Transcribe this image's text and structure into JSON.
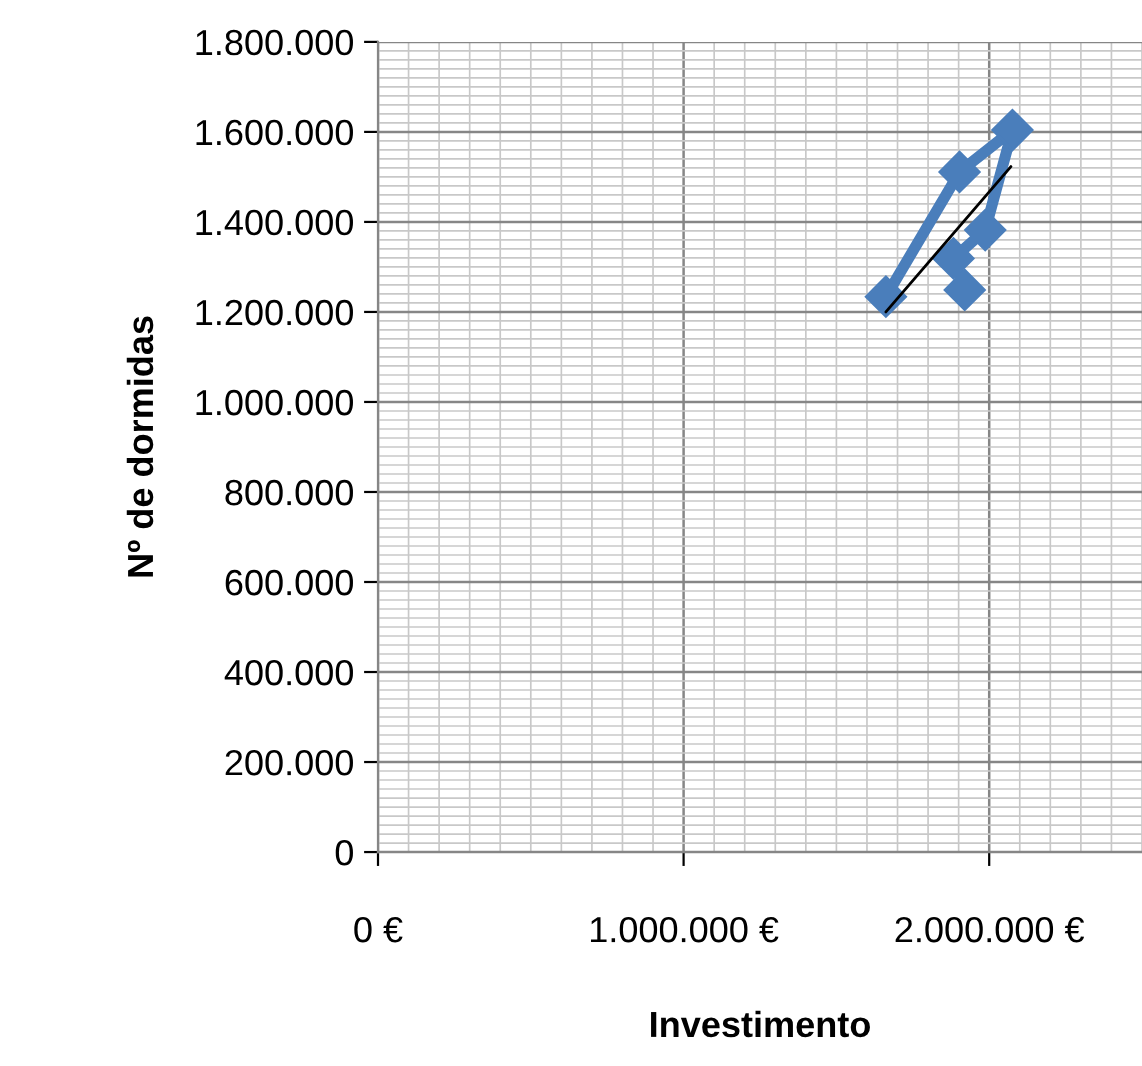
{
  "chart_data": {
    "type": "line",
    "xlabel": "Investimento",
    "ylabel": "Nº de dormidas",
    "series": [
      {
        "color": "#4a7ebb",
        "x": [
          1662000,
          1903000,
          2076000,
          1987000,
          1883000,
          1920000
        ],
        "values": [
          1234000,
          1511000,
          1604000,
          1382000,
          1319000,
          1249000
        ],
        "marker": "diamond",
        "line_style": "solid"
      },
      {
        "color": "#000000",
        "x": [
          1662000,
          2071000
        ],
        "values": [
          1200000,
          1523000
        ],
        "marker": "none",
        "line_style": "solid"
      }
    ],
    "xlim": [
      0,
      2500000
    ],
    "ylim": [
      0,
      1800000
    ],
    "xticks": [
      {
        "value": 0,
        "label": "0 €"
      },
      {
        "value": 1000000,
        "label": "1.000.000 €"
      },
      {
        "value": 2000000,
        "label": "2.000.000 €"
      }
    ],
    "yticks": [
      0,
      {
        "value": 200000,
        "label": "200.000"
      },
      {
        "value": 400000,
        "label": "400.000"
      },
      {
        "value": 600000,
        "label": "600.000"
      },
      {
        "value": 800000,
        "label": "800.000"
      },
      {
        "value": 1000000,
        "label": "1.000.000"
      },
      {
        "value": 1200000,
        "label": "1.200.000"
      },
      {
        "value": 1400000,
        "label": "1.400.000"
      },
      {
        "value": 1600000,
        "label": "1.600.000"
      },
      {
        "value": 1800000,
        "label": "1.800.000"
      }
    ],
    "grid": true,
    "legend": false
  }
}
